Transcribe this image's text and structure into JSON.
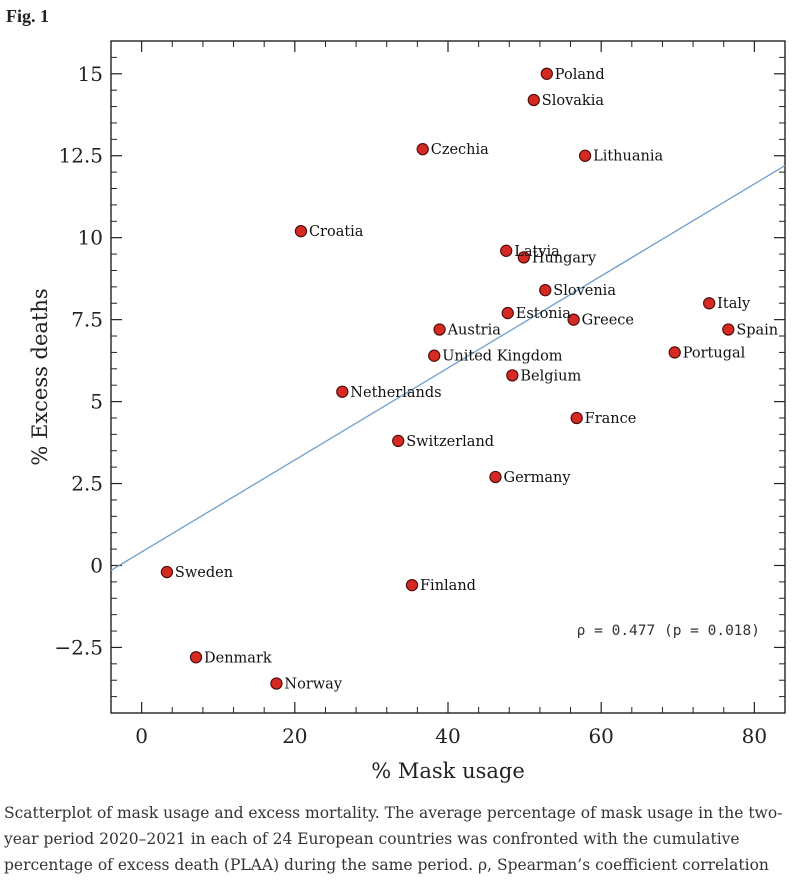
{
  "figure": {
    "label": "Fig. 1",
    "caption": "Scatterplot of mask usage and excess mortality. The average percentage of mask usage in the two-year period 2020–2021 in each of 24 European countries was confronted with the cumulative percentage of excess death (PLAA) during the same period. ρ, Spearman’s coefficient correlation"
  },
  "chart_data": {
    "type": "scatter",
    "title": "",
    "xlabel": "% Mask usage",
    "ylabel": "% Excess deaths",
    "xlim": [
      -4,
      84
    ],
    "ylim": [
      -4.5,
      16
    ],
    "xticks": [
      0,
      20,
      40,
      60,
      80
    ],
    "xtick_labels": [
      "0",
      "20",
      "40",
      "60",
      "80"
    ],
    "yticks": [
      -2.5,
      0,
      2.5,
      5,
      7.5,
      10,
      12.5,
      15
    ],
    "ytick_labels": [
      "−2.5",
      "0",
      "2.5",
      "5",
      "7.5",
      "10",
      "12.5",
      "15"
    ],
    "grid": false,
    "annotation": "ρ = 0.477 (p = 0.018)",
    "point_color": "#d42a23",
    "line_color": "#6f9dc9",
    "trendline": {
      "x": [
        -4,
        84
      ],
      "y": [
        -0.15,
        12.2
      ]
    },
    "points": [
      {
        "label": "Poland",
        "x": 52.9,
        "y": 15.0
      },
      {
        "label": "Slovakia",
        "x": 51.2,
        "y": 14.2
      },
      {
        "label": "Czechia",
        "x": 36.7,
        "y": 12.7
      },
      {
        "label": "Lithuania",
        "x": 57.9,
        "y": 12.5
      },
      {
        "label": "Croatia",
        "x": 20.8,
        "y": 10.2
      },
      {
        "label": "Latvia",
        "x": 47.6,
        "y": 9.6
      },
      {
        "label": "Hungary",
        "x": 49.9,
        "y": 9.4
      },
      {
        "label": "Slovenia",
        "x": 52.7,
        "y": 8.4
      },
      {
        "label": "Italy",
        "x": 74.1,
        "y": 8.0
      },
      {
        "label": "Estonia",
        "x": 47.8,
        "y": 7.7
      },
      {
        "label": "Greece",
        "x": 56.4,
        "y": 7.5
      },
      {
        "label": "Austria",
        "x": 38.9,
        "y": 7.2
      },
      {
        "label": "Spain",
        "x": 76.6,
        "y": 7.2
      },
      {
        "label": "Portugal",
        "x": 69.6,
        "y": 6.5
      },
      {
        "label": "United Kingdom",
        "x": 38.2,
        "y": 6.4
      },
      {
        "label": "Belgium",
        "x": 48.4,
        "y": 5.8
      },
      {
        "label": "Netherlands",
        "x": 26.2,
        "y": 5.3
      },
      {
        "label": "France",
        "x": 56.8,
        "y": 4.5
      },
      {
        "label": "Switzerland",
        "x": 33.5,
        "y": 3.8
      },
      {
        "label": "Germany",
        "x": 46.2,
        "y": 2.7
      },
      {
        "label": "Sweden",
        "x": 3.3,
        "y": -0.2
      },
      {
        "label": "Finland",
        "x": 35.3,
        "y": -0.6
      },
      {
        "label": "Denmark",
        "x": 7.1,
        "y": -2.8
      },
      {
        "label": "Norway",
        "x": 17.6,
        "y": -3.6
      }
    ]
  }
}
